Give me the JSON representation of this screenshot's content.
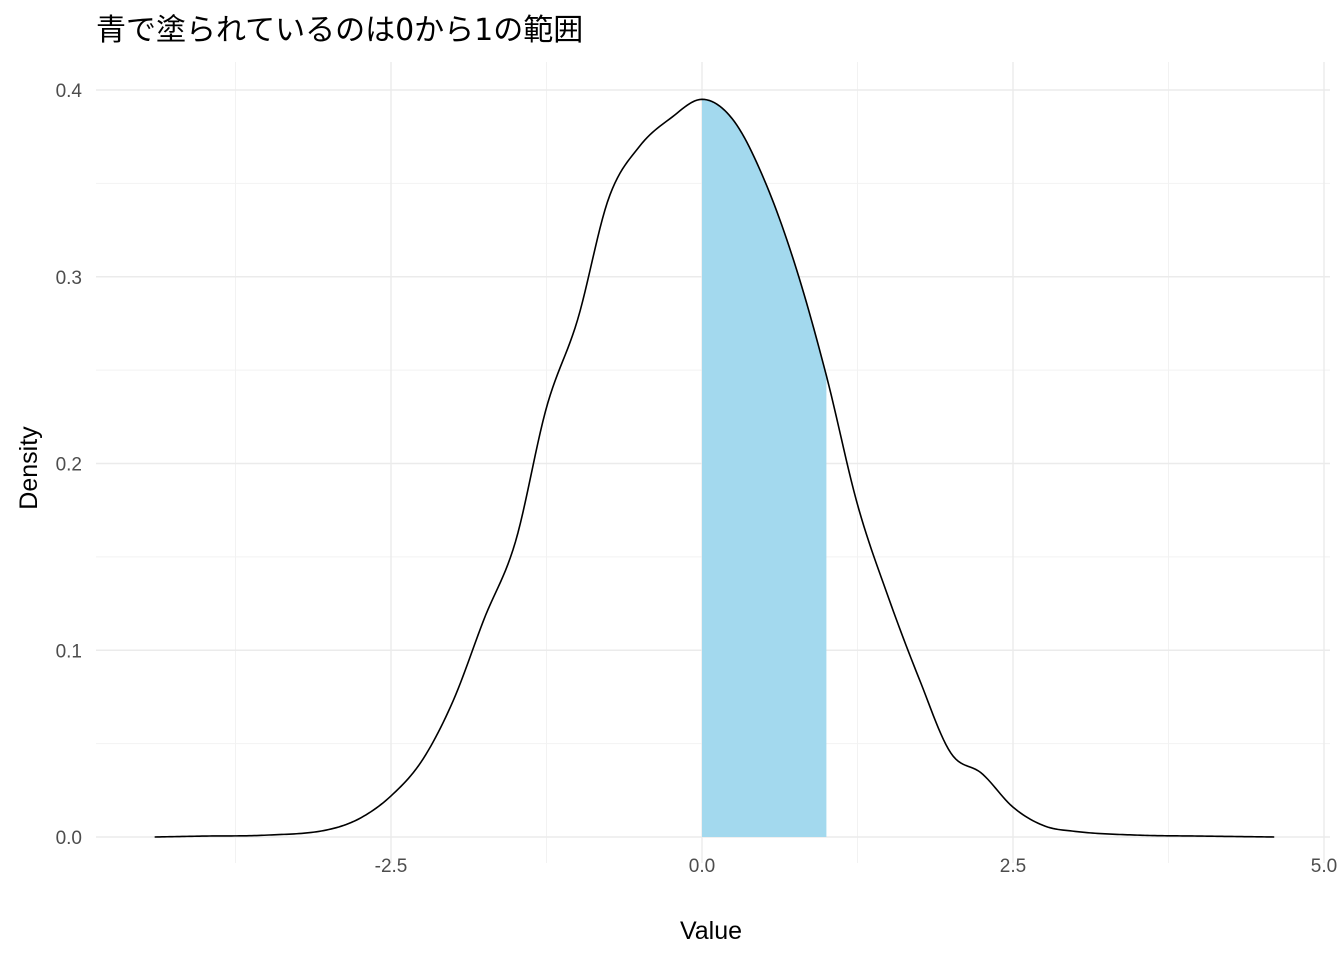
{
  "chart_data": {
    "type": "area",
    "title": "青で塗られているのは0から1の範囲",
    "xlabel": "Value",
    "ylabel": "Density",
    "xlim": [
      -4.45,
      5.0
    ],
    "ylim": [
      0.0,
      0.41
    ],
    "x_ticks": [
      -2.5,
      0.0,
      2.5,
      5.0
    ],
    "x_tick_labels": [
      "-2.5",
      "0.0",
      "2.5",
      "5.0"
    ],
    "y_ticks": [
      0.0,
      0.1,
      0.2,
      0.3,
      0.4
    ],
    "y_tick_labels": [
      "0.0",
      "0.1",
      "0.2",
      "0.3",
      "0.4"
    ],
    "grid": true,
    "legend": "none",
    "series": [
      {
        "color": "#000000",
        "x": [
          -4.4,
          -4.0,
          -3.5,
          -3.0,
          -2.75,
          -2.5,
          -2.25,
          -2.0,
          -1.75,
          -1.5,
          -1.25,
          -1.0,
          -0.75,
          -0.5,
          -0.25,
          0.0,
          0.25,
          0.5,
          0.75,
          1.0,
          1.25,
          1.5,
          1.75,
          2.0,
          2.25,
          2.5,
          2.75,
          3.0,
          3.5,
          4.0,
          4.6
        ],
        "y": [
          0.0,
          0.0005,
          0.001,
          0.004,
          0.01,
          0.022,
          0.041,
          0.073,
          0.117,
          0.158,
          0.23,
          0.277,
          0.342,
          0.37,
          0.385,
          0.395,
          0.384,
          0.352,
          0.306,
          0.247,
          0.178,
          0.128,
          0.084,
          0.045,
          0.034,
          0.016,
          0.006,
          0.003,
          0.001,
          0.0005,
          0.0
        ]
      }
    ],
    "shaded_region": {
      "x_from": 0.0,
      "x_to": 1.0,
      "color": "#a3d9ee"
    }
  }
}
